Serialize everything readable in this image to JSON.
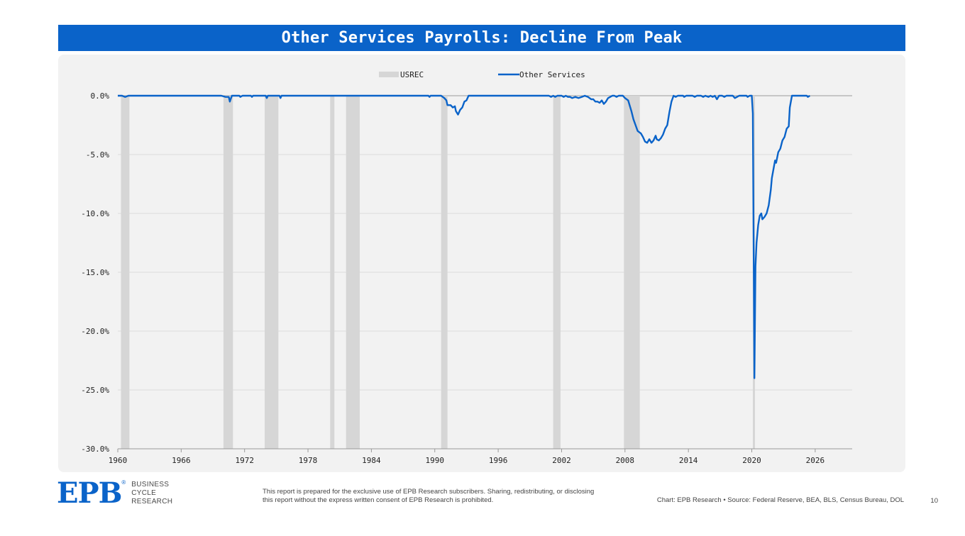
{
  "header": {
    "title": "Other Services Payrolls: Decline From Peak"
  },
  "chart_data": {
    "type": "line",
    "title": "Other Services Payrolls: Decline From Peak",
    "xlabel": "",
    "ylabel": "",
    "xlim": [
      1960,
      2029.5
    ],
    "ylim": [
      -30,
      0
    ],
    "x_ticks": [
      "1960",
      "1966",
      "1972",
      "1978",
      "1984",
      "1990",
      "1996",
      "2002",
      "2008",
      "2014",
      "2020",
      "2026"
    ],
    "y_ticks": [
      "0.0%",
      "-5.0%",
      "-10.0%",
      "-15.0%",
      "-20.0%",
      "-25.0%",
      "-30.0%"
    ],
    "grid": "horizontal",
    "legend": {
      "position": "top-center",
      "entries": [
        "USREC",
        "Other Services"
      ]
    },
    "recessions": [
      {
        "name": "USREC",
        "start": 1960.3,
        "end": 1961.1
      },
      {
        "name": "USREC",
        "start": 1970.0,
        "end": 1970.9
      },
      {
        "name": "USREC",
        "start": 1973.9,
        "end": 1975.2
      },
      {
        "name": "USREC",
        "start": 1980.1,
        "end": 1980.5
      },
      {
        "name": "USREC",
        "start": 1981.6,
        "end": 1982.9
      },
      {
        "name": "USREC",
        "start": 1990.6,
        "end": 1991.2
      },
      {
        "name": "USREC",
        "start": 2001.2,
        "end": 2001.9
      },
      {
        "name": "USREC",
        "start": 2007.9,
        "end": 2009.4
      },
      {
        "name": "USREC",
        "start": 2020.1,
        "end": 2020.3
      }
    ],
    "series": [
      {
        "name": "Other Services",
        "color": "#0a63c9",
        "points": [
          [
            1960.0,
            0
          ],
          [
            1960.4,
            0
          ],
          [
            1960.7,
            -0.1
          ],
          [
            1961.0,
            0
          ],
          [
            1969.8,
            0
          ],
          [
            1970.2,
            -0.1
          ],
          [
            1970.5,
            -0.1
          ],
          [
            1970.6,
            -0.5
          ],
          [
            1970.8,
            0
          ],
          [
            1971.5,
            0
          ],
          [
            1971.6,
            -0.1
          ],
          [
            1971.8,
            0
          ],
          [
            1972.6,
            0
          ],
          [
            1972.7,
            -0.1
          ],
          [
            1972.8,
            0
          ],
          [
            1974.0,
            0
          ],
          [
            1974.1,
            -0.2
          ],
          [
            1974.2,
            0
          ],
          [
            1975.3,
            0
          ],
          [
            1975.4,
            -0.2
          ],
          [
            1975.5,
            0
          ],
          [
            1989.4,
            0
          ],
          [
            1989.5,
            -0.1
          ],
          [
            1989.6,
            0
          ],
          [
            1990.6,
            0
          ],
          [
            1990.9,
            -0.2
          ],
          [
            1991.1,
            -0.4
          ],
          [
            1991.2,
            -0.8
          ],
          [
            1991.5,
            -0.8
          ],
          [
            1991.7,
            -1.0
          ],
          [
            1991.9,
            -0.9
          ],
          [
            1992.0,
            -1.3
          ],
          [
            1992.2,
            -1.6
          ],
          [
            1992.4,
            -1.2
          ],
          [
            1992.6,
            -1.0
          ],
          [
            1992.8,
            -0.5
          ],
          [
            1993.0,
            -0.4
          ],
          [
            1993.2,
            0
          ],
          [
            2000.8,
            0
          ],
          [
            2001.0,
            -0.1
          ],
          [
            2001.2,
            0
          ],
          [
            2001.4,
            -0.1
          ],
          [
            2001.6,
            0
          ],
          [
            2002.0,
            0
          ],
          [
            2002.2,
            -0.1
          ],
          [
            2002.4,
            0
          ],
          [
            2002.6,
            -0.1
          ],
          [
            2002.8,
            -0.1
          ],
          [
            2003.0,
            -0.2
          ],
          [
            2003.3,
            -0.1
          ],
          [
            2003.6,
            -0.2
          ],
          [
            2003.9,
            -0.1
          ],
          [
            2004.2,
            0
          ],
          [
            2004.5,
            -0.1
          ],
          [
            2004.8,
            -0.3
          ],
          [
            2005.0,
            -0.3
          ],
          [
            2005.2,
            -0.5
          ],
          [
            2005.4,
            -0.5
          ],
          [
            2005.6,
            -0.6
          ],
          [
            2005.8,
            -0.4
          ],
          [
            2006.0,
            -0.7
          ],
          [
            2006.2,
            -0.5
          ],
          [
            2006.4,
            -0.2
          ],
          [
            2006.6,
            -0.1
          ],
          [
            2006.8,
            0
          ],
          [
            2007.0,
            0
          ],
          [
            2007.2,
            -0.1
          ],
          [
            2007.4,
            0
          ],
          [
            2007.8,
            0
          ],
          [
            2008.0,
            -0.2
          ],
          [
            2008.3,
            -0.4
          ],
          [
            2008.6,
            -1.3
          ],
          [
            2008.8,
            -2.0
          ],
          [
            2009.0,
            -2.5
          ],
          [
            2009.2,
            -3.0
          ],
          [
            2009.5,
            -3.2
          ],
          [
            2009.7,
            -3.5
          ],
          [
            2009.9,
            -3.9
          ],
          [
            2010.1,
            -4.0
          ],
          [
            2010.3,
            -3.7
          ],
          [
            2010.5,
            -4.0
          ],
          [
            2010.7,
            -3.8
          ],
          [
            2010.9,
            -3.4
          ],
          [
            2011.0,
            -3.7
          ],
          [
            2011.2,
            -3.8
          ],
          [
            2011.4,
            -3.6
          ],
          [
            2011.6,
            -3.3
          ],
          [
            2011.8,
            -2.8
          ],
          [
            2012.0,
            -2.5
          ],
          [
            2012.2,
            -1.4
          ],
          [
            2012.4,
            -0.5
          ],
          [
            2012.6,
            0
          ],
          [
            2012.8,
            -0.1
          ],
          [
            2013.0,
            0
          ],
          [
            2013.5,
            0
          ],
          [
            2013.6,
            -0.1
          ],
          [
            2013.8,
            0
          ],
          [
            2014.4,
            0
          ],
          [
            2014.6,
            -0.1
          ],
          [
            2014.8,
            0
          ],
          [
            2015.2,
            0
          ],
          [
            2015.4,
            -0.1
          ],
          [
            2015.6,
            0
          ],
          [
            2015.9,
            -0.1
          ],
          [
            2016.1,
            0
          ],
          [
            2016.3,
            -0.1
          ],
          [
            2016.5,
            0
          ],
          [
            2016.7,
            -0.3
          ],
          [
            2016.9,
            0
          ],
          [
            2017.2,
            0
          ],
          [
            2017.4,
            -0.1
          ],
          [
            2017.6,
            0
          ],
          [
            2018.2,
            0
          ],
          [
            2018.4,
            -0.2
          ],
          [
            2018.6,
            -0.1
          ],
          [
            2018.8,
            0
          ],
          [
            2019.5,
            0
          ],
          [
            2019.6,
            -0.1
          ],
          [
            2019.8,
            0
          ],
          [
            2020.0,
            0
          ],
          [
            2020.1,
            -1.5
          ],
          [
            2020.25,
            -24.0
          ],
          [
            2020.35,
            -14.5
          ],
          [
            2020.45,
            -12.5
          ],
          [
            2020.6,
            -11.0
          ],
          [
            2020.75,
            -10.2
          ],
          [
            2020.9,
            -10.0
          ],
          [
            2021.0,
            -10.5
          ],
          [
            2021.2,
            -10.3
          ],
          [
            2021.4,
            -10.0
          ],
          [
            2021.6,
            -9.3
          ],
          [
            2021.8,
            -8.0
          ],
          [
            2021.9,
            -7.0
          ],
          [
            2022.0,
            -6.5
          ],
          [
            2022.2,
            -5.5
          ],
          [
            2022.3,
            -5.7
          ],
          [
            2022.5,
            -4.8
          ],
          [
            2022.7,
            -4.5
          ],
          [
            2022.9,
            -3.8
          ],
          [
            2023.1,
            -3.5
          ],
          [
            2023.3,
            -2.8
          ],
          [
            2023.5,
            -2.6
          ],
          [
            2023.6,
            -1.0
          ],
          [
            2023.8,
            0
          ],
          [
            2024.0,
            0
          ],
          [
            2025.2,
            0
          ],
          [
            2025.3,
            -0.1
          ],
          [
            2025.5,
            0
          ]
        ]
      }
    ]
  },
  "footer": {
    "logo_mark": "EPB",
    "logo_reg": "®",
    "logo_line1": "BUSINESS",
    "logo_line2": "CYCLE",
    "logo_line3": "RESEARCH",
    "disclaimer": "This report is prepared for the exclusive use of EPB Research subscribers. Sharing, redistributing, or disclosing this report without the express written consent of EPB Research is prohibited.",
    "source": "Chart: EPB Research  •  Source: Federal Reserve, BEA, BLS, Census Bureau, DOL",
    "page_number": "10"
  }
}
